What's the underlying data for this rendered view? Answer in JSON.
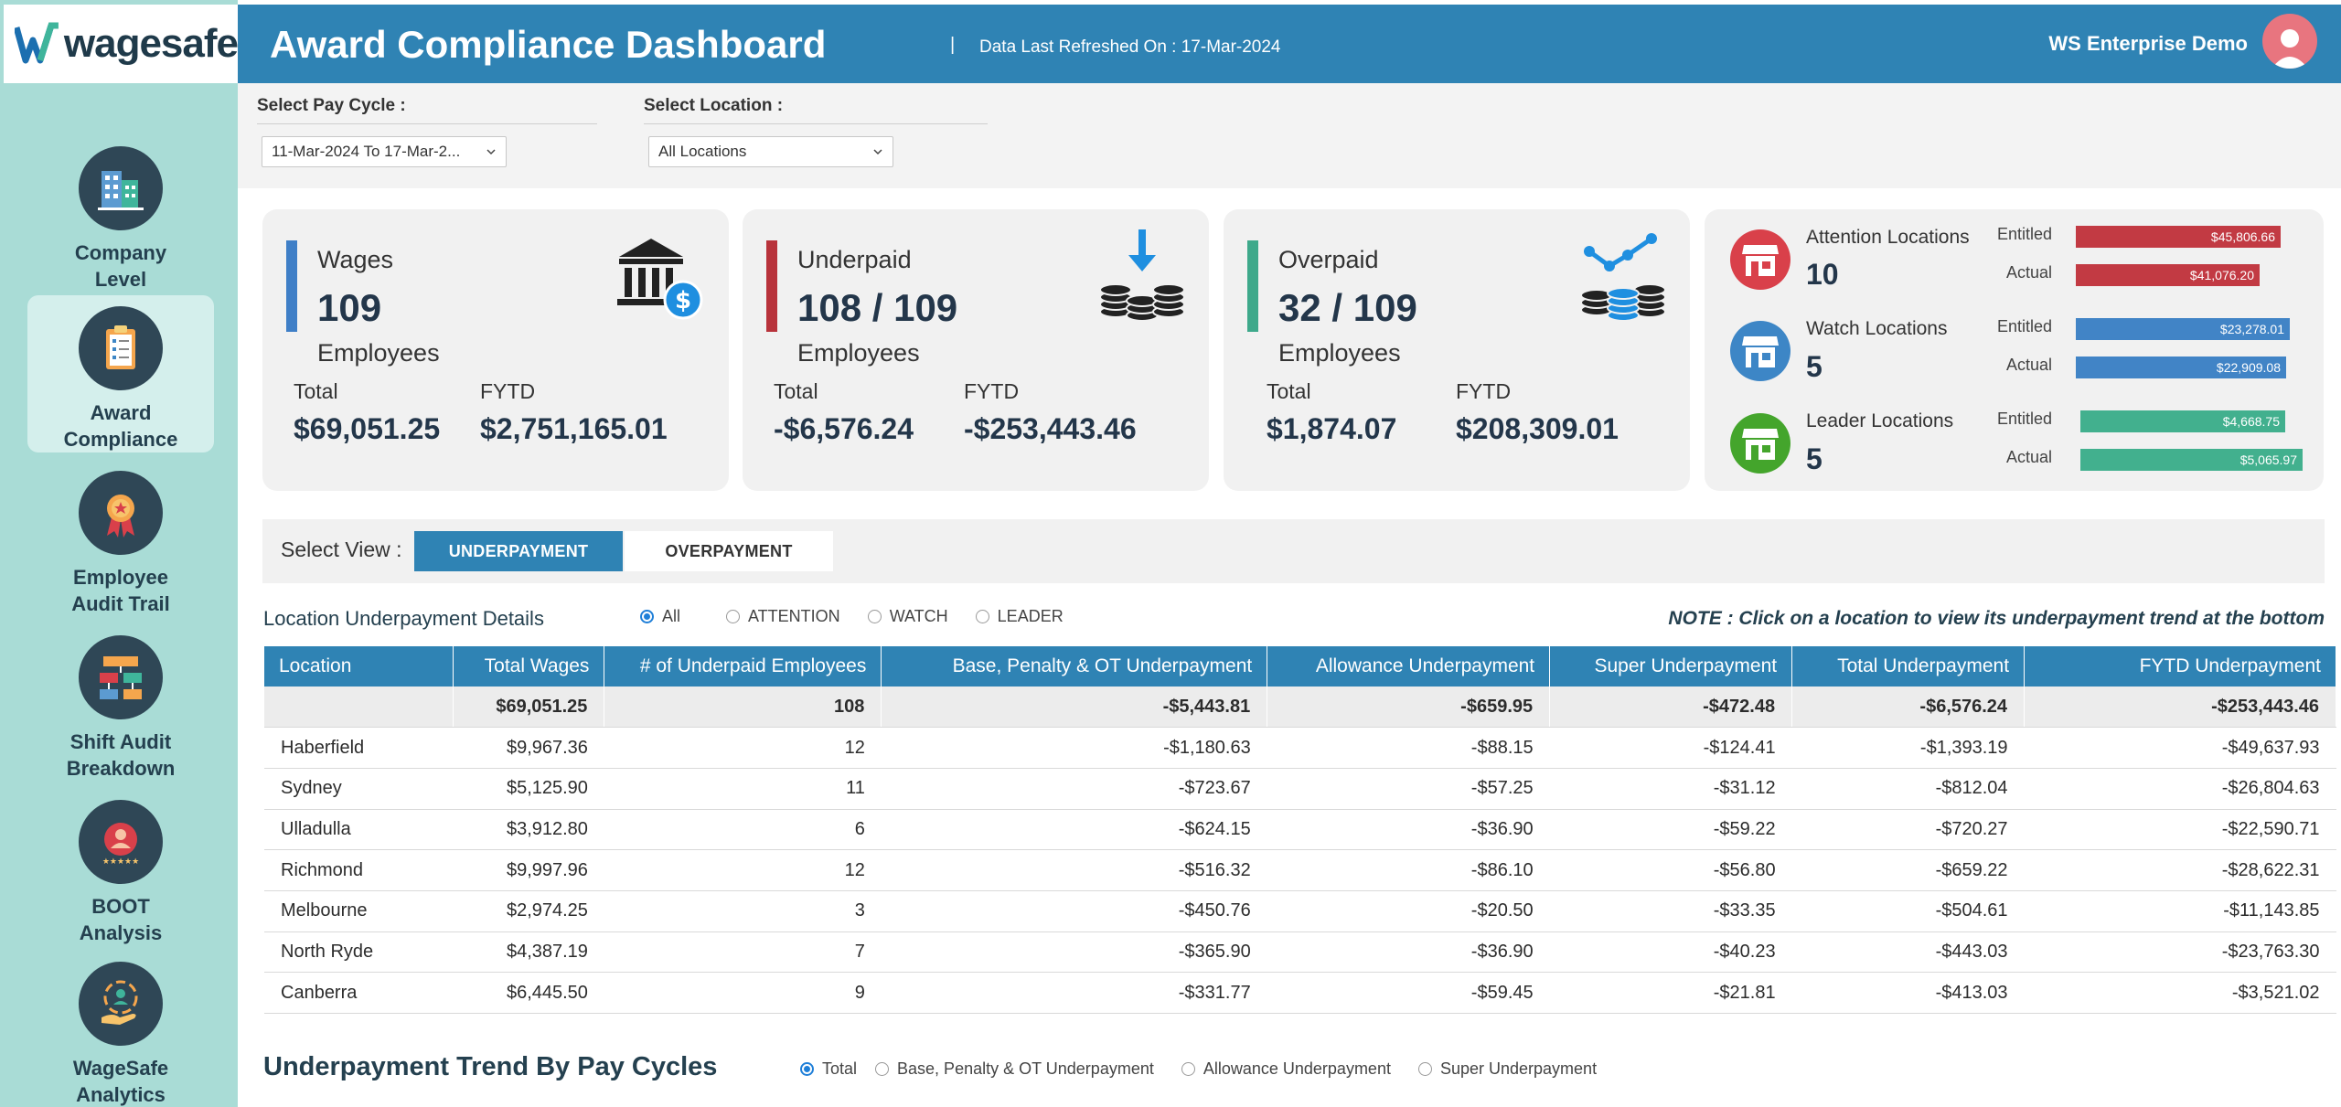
{
  "app": {
    "logo_text": "wagesafe"
  },
  "sidebar": {
    "items": [
      {
        "label": "Company\nLevel",
        "icon": "building-icon",
        "active": false
      },
      {
        "label": "Award\nCompliance",
        "icon": "clipboard-icon",
        "active": true
      },
      {
        "label": "Employee\nAudit Trail",
        "icon": "ribbon-icon",
        "active": false
      },
      {
        "label": "Shift Audit\nBreakdown",
        "icon": "hierarchy-icon",
        "active": false
      },
      {
        "label": "BOOT\nAnalysis",
        "icon": "rating-user-icon",
        "active": false
      },
      {
        "label": "WageSafe\nAnalytics",
        "icon": "analytics-hand-icon",
        "active": false
      }
    ]
  },
  "header": {
    "title": "Award Compliance Dashboard",
    "separator": "|",
    "refresh": "Data Last Refreshed On : 17-Mar-2024",
    "user": "WS Enterprise Demo"
  },
  "filters": {
    "pay_cycle_label": "Select Pay Cycle :",
    "pay_cycle_value": "11-Mar-2024 To 17-Mar-2...",
    "location_label": "Select Location :",
    "location_value": "All Locations"
  },
  "cards": {
    "wages": {
      "title": "Wages",
      "count": "109",
      "employees": "Employees",
      "total_label": "Total",
      "total": "$69,051.25",
      "fytd_label": "FYTD",
      "fytd": "$2,751,165.01",
      "color": "#3f7fc7"
    },
    "underpaid": {
      "title": "Underpaid",
      "count": "108 / 109",
      "employees": "Employees",
      "total_label": "Total",
      "total": "-$6,576.24",
      "fytd_label": "FYTD",
      "fytd": "-$253,443.46",
      "color": "#b8333b"
    },
    "overpaid": {
      "title": "Overpaid",
      "count": "32 / 109",
      "employees": "Employees",
      "total_label": "Total",
      "total": "$1,874.07",
      "fytd_label": "FYTD",
      "fytd": "$208,309.01",
      "color": "#3ea98b"
    }
  },
  "locations": {
    "attention": {
      "title": "Attention Locations",
      "count": "10",
      "color": "#d9404a",
      "entitled_label": "Entitled",
      "entitled": "$45,806.66",
      "entitled_fill": 0.95,
      "actual_label": "Actual",
      "actual": "$41,076.20",
      "actual_fill": 0.85
    },
    "watch": {
      "title": "Watch Locations",
      "count": "5",
      "color": "#3d86c6",
      "entitled_label": "Entitled",
      "entitled": "$23,278.01",
      "entitled_fill": 0.92,
      "actual_label": "Actual",
      "actual": "$22,909.08",
      "actual_fill": 0.9
    },
    "leader": {
      "title": "Leader Locations",
      "count": "5",
      "color": "#44a52c",
      "entitled_label": "Entitled",
      "entitled": "$4,668.75",
      "entitled_fill": 0.92,
      "actual_label": "Actual",
      "actual": "$5,065.97",
      "actual_fill": 1.0
    },
    "bar_colors": {
      "attention": "#c23a43",
      "watch": "#4184c6",
      "leader": "#42b08e"
    }
  },
  "view": {
    "label": "Select View :",
    "underpayment": "UNDERPAYMENT",
    "overpayment": "OVERPAYMENT"
  },
  "details": {
    "title": "Location Underpayment Details",
    "filters": [
      "All",
      "ATTENTION",
      "WATCH",
      "LEADER"
    ],
    "selected_filter": "All",
    "note": "NOTE : Click on a location to view its underpayment trend at the bottom"
  },
  "table": {
    "columns": [
      "Location",
      "Total Wages",
      "# of Underpaid Employees",
      "Base, Penalty & OT Underpayment",
      "Allowance Underpayment",
      "Super Underpayment",
      "Total Underpayment",
      "FYTD Underpayment"
    ],
    "total_row": [
      "",
      "$69,051.25",
      "108",
      "-$5,443.81",
      "-$659.95",
      "-$472.48",
      "-$6,576.24",
      "-$253,443.46"
    ],
    "rows": [
      [
        "Haberfield",
        "$9,967.36",
        "12",
        "-$1,180.63",
        "-$88.15",
        "-$124.41",
        "-$1,393.19",
        "-$49,637.93"
      ],
      [
        "Sydney",
        "$5,125.90",
        "11",
        "-$723.67",
        "-$57.25",
        "-$31.12",
        "-$812.04",
        "-$26,804.63"
      ],
      [
        "Ulladulla",
        "$3,912.80",
        "6",
        "-$624.15",
        "-$36.90",
        "-$59.22",
        "-$720.27",
        "-$22,590.71"
      ],
      [
        "Richmond",
        "$9,997.96",
        "12",
        "-$516.32",
        "-$86.10",
        "-$56.80",
        "-$659.22",
        "-$28,622.31"
      ],
      [
        "Melbourne",
        "$2,974.25",
        "3",
        "-$450.76",
        "-$20.50",
        "-$33.35",
        "-$504.61",
        "-$11,143.85"
      ],
      [
        "North Ryde",
        "$4,387.19",
        "7",
        "-$365.90",
        "-$36.90",
        "-$40.23",
        "-$443.03",
        "-$23,763.30"
      ],
      [
        "Canberra",
        "$6,445.50",
        "9",
        "-$331.77",
        "-$59.45",
        "-$21.81",
        "-$413.03",
        "-$3,521.02"
      ]
    ]
  },
  "trend": {
    "title": "Underpayment Trend By Pay Cycles",
    "options": [
      "Total",
      "Base, Penalty & OT Underpayment",
      "Allowance Underpayment",
      "Super Underpayment"
    ],
    "selected": "Total"
  }
}
